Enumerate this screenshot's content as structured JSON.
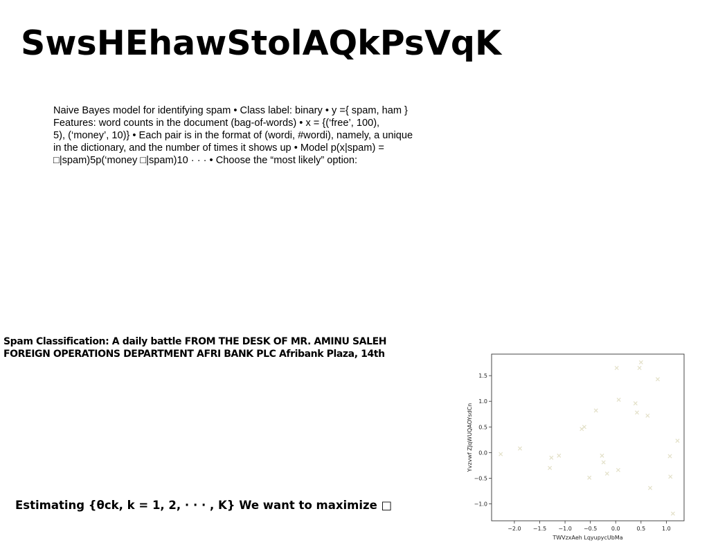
{
  "title": "SwsHEhawStolAQkPsVqK",
  "body_lines": [
    "Naive Bayes model for identifying spam • Class label: binary • y ={ spam, ham }",
    "Features: word counts in the document (bag-of-words) • x = {(‘free’, 100),",
    "5), (‘money’, 10)} • Each pair is in the format of (wordi, #wordi), namely, a unique",
    "in the dictionary, and the number of times it shows up • Model p(x|spam) =",
    "□|spam)5p(‘money □|spam)10 · · · • Choose the “most likely” option:"
  ],
  "heading_lines": [
    "Spam Classification: A daily battle FROM THE DESK OF MR. AMINU SALEH",
    "FOREIGN OPERATIONS DEPARTMENT AFRI BANK PLC Afribank Plaza, 14th"
  ],
  "estimating": "Estimating {θck, k = 1, 2, · · · , K} We want to maximize □",
  "chart_data": {
    "type": "scatter",
    "xlabel": "TWVzxAeh LqyupycUbMa",
    "ylabel": "Yvzvwf ZJqWUQAOYsdCn",
    "xlim": [
      -2.45,
      1.35
    ],
    "ylim": [
      -1.33,
      1.92
    ],
    "xticks": [
      -2.0,
      -1.5,
      -1.0,
      -0.5,
      0.0,
      0.5,
      1.0
    ],
    "xtick_labels": [
      "−2.0",
      "−1.5",
      "−1.0",
      "−0.5",
      "0.0",
      "0.5",
      "1.0"
    ],
    "yticks": [
      -1.0,
      -0.5,
      0.0,
      0.5,
      1.0,
      1.5
    ],
    "ytick_labels": [
      "−1.0",
      "−0.5",
      "0.0",
      "0.5",
      "1.0",
      "1.5"
    ],
    "marker": "x",
    "color": "#e3e0c8",
    "grid": false,
    "x": [
      -2.27,
      -1.89,
      -1.3,
      -1.27,
      -1.12,
      -0.67,
      -0.62,
      -0.52,
      -0.39,
      -0.27,
      -0.24,
      -0.17,
      0.02,
      0.06,
      0.05,
      0.39,
      0.42,
      0.47,
      0.5,
      0.63,
      0.68,
      0.83,
      1.07,
      1.08,
      1.13,
      1.22
    ],
    "y": [
      -0.03,
      0.08,
      -0.3,
      -0.1,
      -0.06,
      0.46,
      0.5,
      -0.49,
      0.82,
      -0.06,
      -0.19,
      -0.41,
      1.65,
      1.03,
      -0.34,
      0.96,
      0.78,
      1.65,
      1.76,
      0.72,
      -0.69,
      1.43,
      -0.07,
      -0.47,
      -1.19,
      0.23
    ]
  }
}
